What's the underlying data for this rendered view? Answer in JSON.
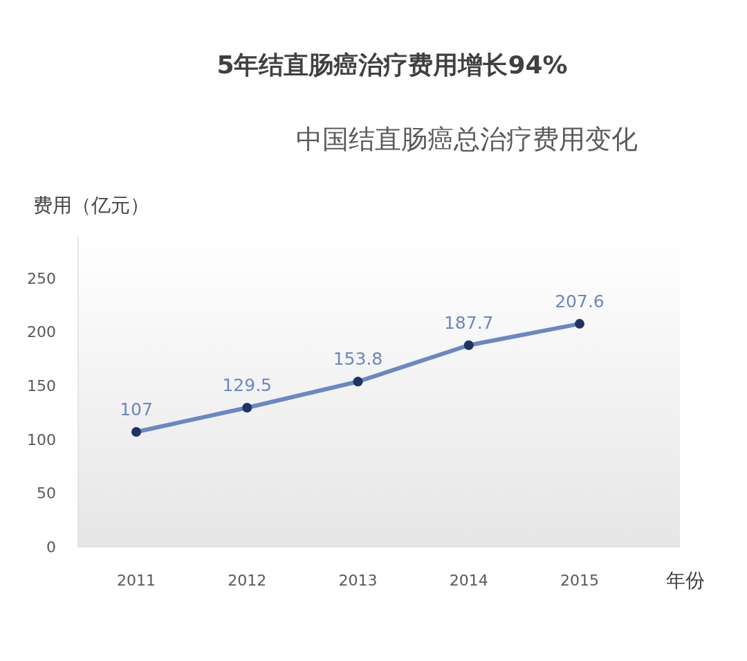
{
  "chart_data": {
    "type": "line",
    "title": "5年结直肠癌治疗费用增长94%",
    "subtitle": "中国结直肠癌总治疗费用变化",
    "ylabel": "费用（亿元）",
    "xlabel": "年份",
    "categories": [
      "2011",
      "2012",
      "2013",
      "2014",
      "2015"
    ],
    "series": [
      {
        "color": "#6b87c3",
        "values": [
          107,
          129.5,
          153.8,
          187.7,
          207.6
        ]
      }
    ],
    "ylim": [
      0,
      290
    ],
    "yticks": [
      0,
      50,
      100,
      150,
      200,
      250
    ],
    "grid": false,
    "marker": "circle",
    "line_style": "solid",
    "data_labels": true
  }
}
